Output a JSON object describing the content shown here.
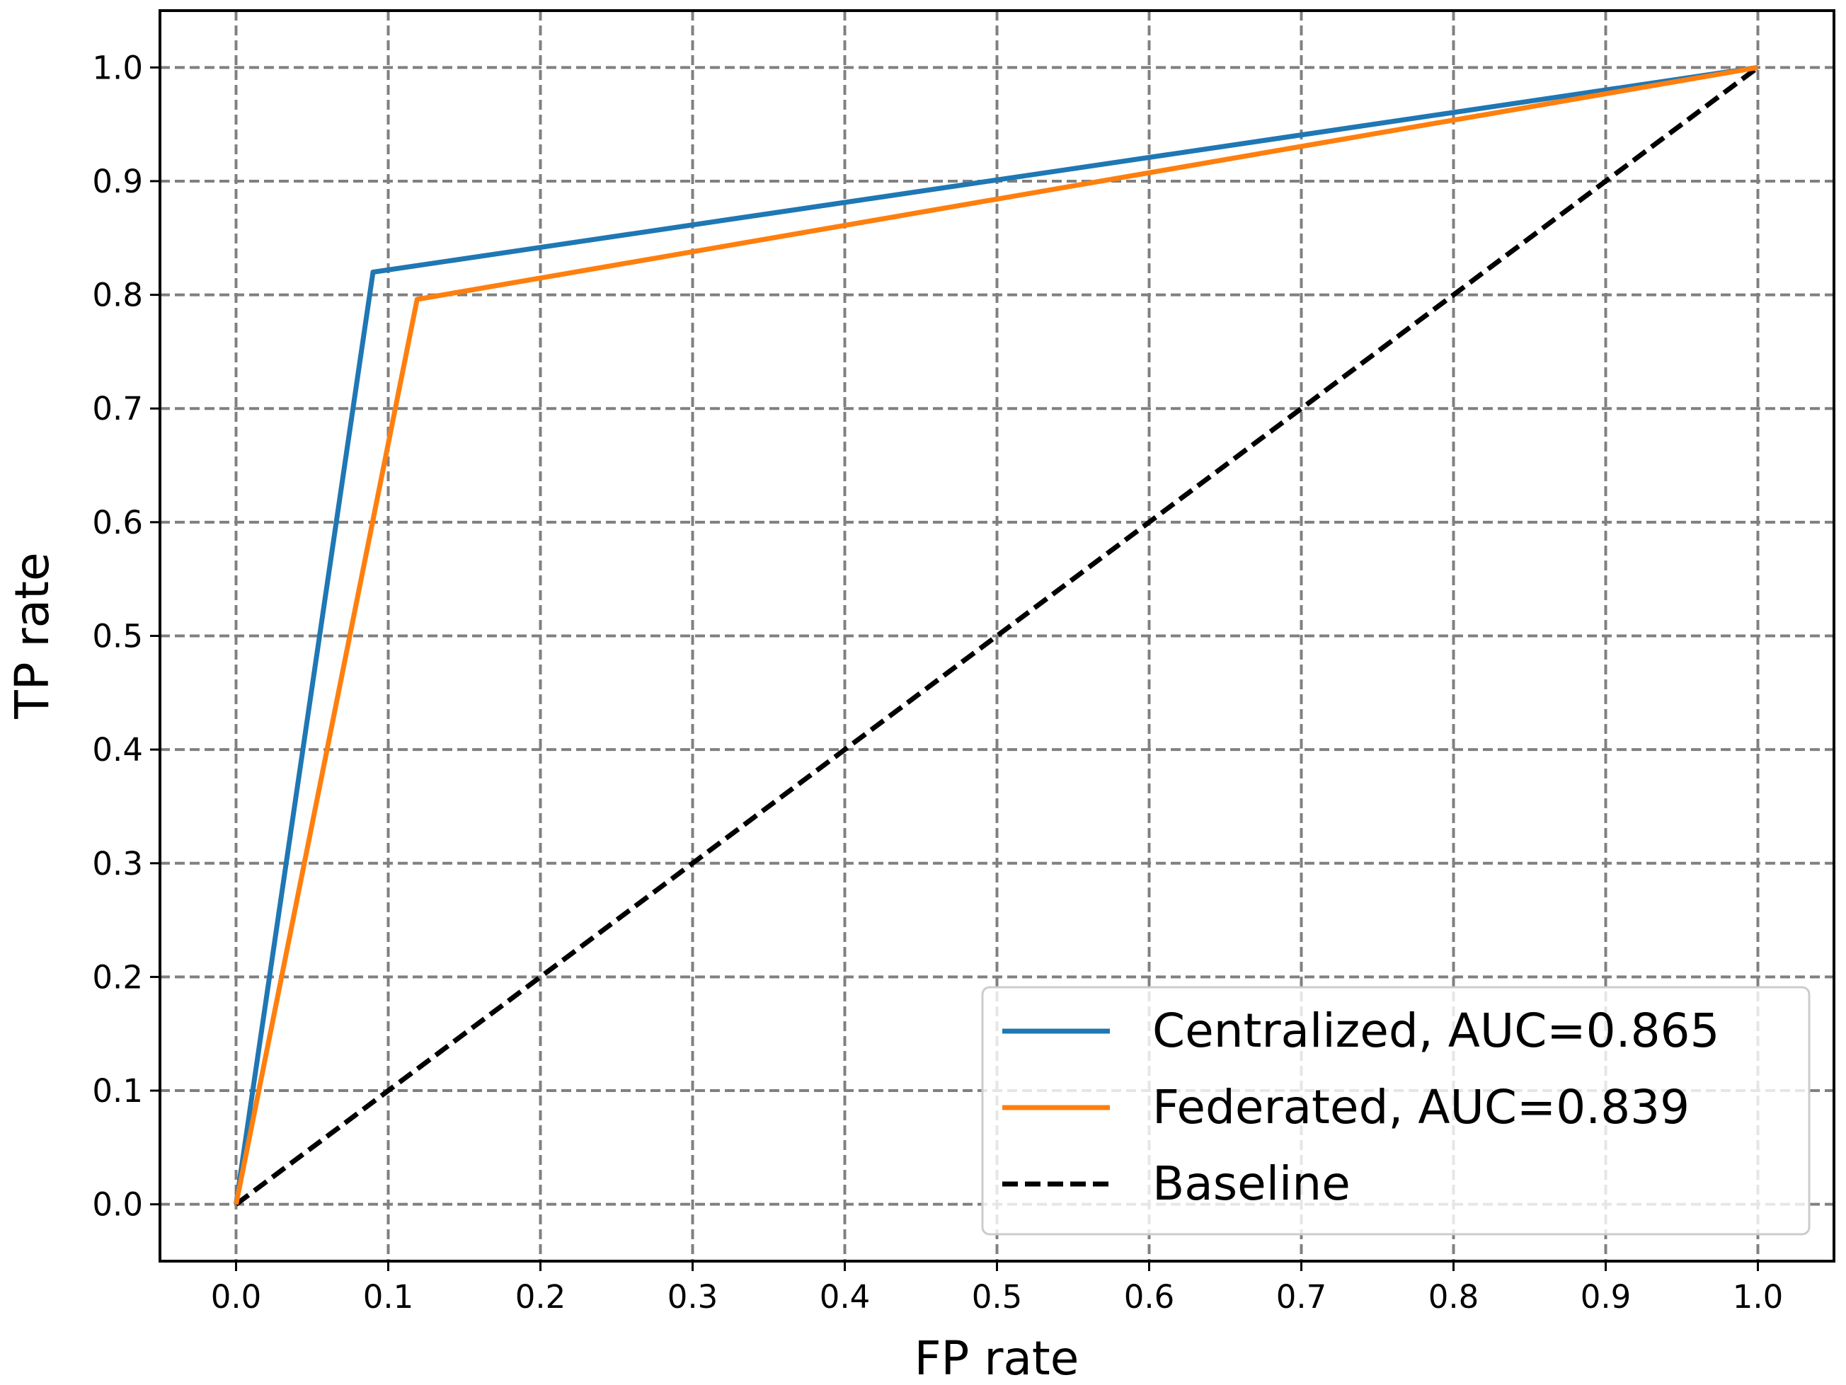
{
  "chart_data": {
    "type": "line",
    "title": "",
    "xlabel": "FP rate",
    "ylabel": "TP rate",
    "xlim": [
      -0.05,
      1.05
    ],
    "ylim": [
      -0.05,
      1.05
    ],
    "xticks": [
      0.0,
      0.1,
      0.2,
      0.3,
      0.4,
      0.5,
      0.6,
      0.7,
      0.8,
      0.9,
      1.0
    ],
    "yticks": [
      0.0,
      0.1,
      0.2,
      0.3,
      0.4,
      0.5,
      0.6,
      0.7,
      0.8,
      0.9,
      1.0
    ],
    "xtick_labels": [
      "0.0",
      "0.1",
      "0.2",
      "0.3",
      "0.4",
      "0.5",
      "0.6",
      "0.7",
      "0.8",
      "0.9",
      "1.0"
    ],
    "ytick_labels": [
      "0.0",
      "0.1",
      "0.2",
      "0.3",
      "0.4",
      "0.5",
      "0.6",
      "0.7",
      "0.8",
      "0.9",
      "1.0"
    ],
    "grid": true,
    "legend_position": "lower-right",
    "series": [
      {
        "name": "Centralized, AUC=0.865",
        "color": "#1f77b4",
        "style": "solid",
        "x": [
          0.0,
          0.09,
          1.0
        ],
        "y": [
          0.0,
          0.82,
          1.0
        ]
      },
      {
        "name": "Federated, AUC=0.839",
        "color": "#ff7f0e",
        "style": "solid",
        "x": [
          0.0,
          0.119,
          1.0
        ],
        "y": [
          0.0,
          0.796,
          1.0
        ]
      },
      {
        "name": "Baseline",
        "color": "#000000",
        "style": "dashed",
        "x": [
          0.0,
          1.0
        ],
        "y": [
          0.0,
          1.0
        ]
      }
    ]
  }
}
